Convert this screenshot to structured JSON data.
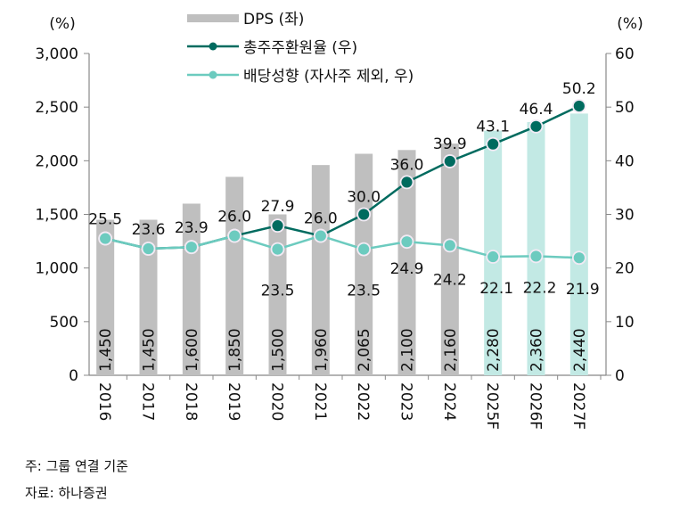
{
  "chart_data": {
    "type": "bar+line",
    "categories": [
      "2016",
      "2017",
      "2018",
      "2019",
      "2020",
      "2021",
      "2022",
      "2023",
      "2024",
      "2025F",
      "2026F",
      "2027F"
    ],
    "left_axis": {
      "unit_label": "(%)",
      "ylim": [
        0,
        3000
      ],
      "ticks": [
        "0",
        "500",
        "1,000",
        "1,500",
        "2,000",
        "2,500",
        "3,000"
      ]
    },
    "right_axis": {
      "unit_label": "(%)",
      "ylim": [
        0,
        60
      ],
      "ticks": [
        "0",
        "10",
        "20",
        "30",
        "40",
        "50",
        "60"
      ]
    },
    "bars": {
      "name": "DPS (좌)",
      "values": [
        1450,
        1450,
        1600,
        1850,
        1500,
        1960,
        2065,
        2100,
        2160,
        2280,
        2360,
        2440
      ],
      "labels": [
        "1,450",
        "1,450",
        "1,600",
        "1,850",
        "1,500",
        "1,960",
        "2,065",
        "2,100",
        "2,160",
        "2,280",
        "2,360",
        "2,440"
      ],
      "color": "#bfbfbf",
      "forecast_color": "#c2e9e4"
    },
    "series": [
      {
        "name": "총주주환원율 (우)",
        "values": [
          25.5,
          23.6,
          23.9,
          26.0,
          27.9,
          26.0,
          30.0,
          36.0,
          39.9,
          43.1,
          46.4,
          50.2
        ],
        "color": "#006b5f",
        "labels": [
          "25.5",
          "23.6",
          "23.9",
          "26.0",
          "27.9",
          "26.0",
          "30.0",
          "36.0",
          "39.9",
          "43.1",
          "46.4",
          "50.2"
        ]
      },
      {
        "name": "배당성향 (자사주 제외, 우)",
        "values": [
          25.5,
          23.6,
          23.9,
          26.0,
          23.5,
          26.0,
          23.5,
          24.9,
          24.2,
          22.1,
          22.2,
          21.9
        ],
        "color": "#6ccbbf",
        "labels": [
          "",
          "",
          "",
          "",
          "23.5",
          "",
          "23.5",
          "24.9",
          "24.2",
          "22.1",
          "22.2",
          "21.9"
        ]
      }
    ],
    "legend": "top-center",
    "grid": false
  },
  "notes": {
    "note": "주: 그룹 연결 기준",
    "source": "자료: 하나증권"
  }
}
